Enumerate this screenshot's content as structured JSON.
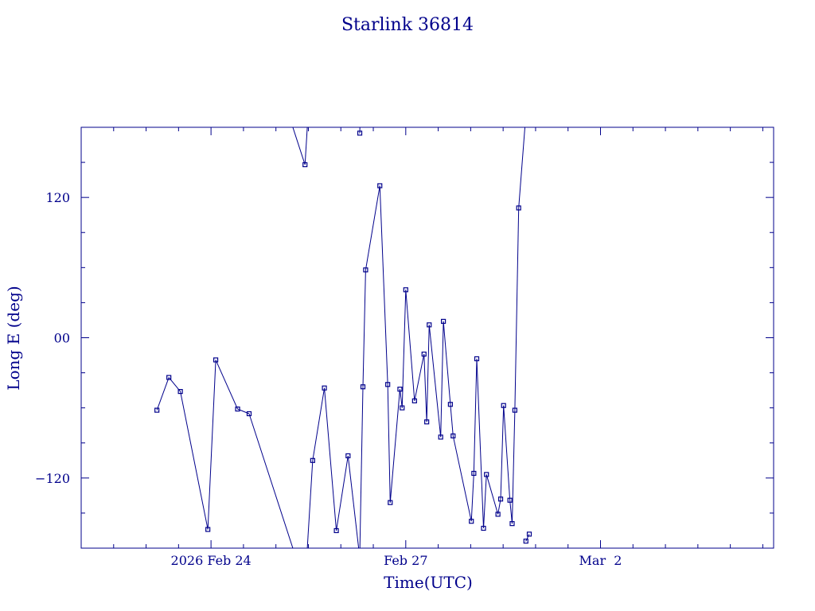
{
  "chart_data": {
    "type": "line",
    "title": "Starlink 36814",
    "xlabel": "Time(UTC)",
    "ylabel": "Long E (deg)",
    "x_unit": "days",
    "xlim": [
      "2026-02-22T00:00",
      "2026-03-04T16:00"
    ],
    "ylim": [
      -180,
      180
    ],
    "x_ticks": [
      {
        "label": "2026 Feb 24",
        "x": "2026-02-24T00:00"
      },
      {
        "label": "Feb 27",
        "x": "2026-02-27T00:00"
      },
      {
        "label": "Mar  2",
        "x": "2026-03-02T00:00"
      }
    ],
    "y_ticks": [
      {
        "label": "−120",
        "value": -120
      },
      {
        "label": "00",
        "value": 0
      },
      {
        "label": "120",
        "value": 120
      }
    ],
    "color": "#00008b",
    "wraps_at_longitude": 180,
    "series": [
      {
        "points": [
          {
            "x": "2026-02-23T04:00",
            "y": -62
          },
          {
            "x": "2026-02-23T08:25",
            "y": -34
          },
          {
            "x": "2026-02-23T12:40",
            "y": -46
          },
          {
            "x": "2026-02-23T22:50",
            "y": -164
          },
          {
            "x": "2026-02-24T01:45",
            "y": -19
          },
          {
            "x": "2026-02-24T09:50",
            "y": -61
          },
          {
            "x": "2026-02-24T14:05",
            "y": -65
          },
          {
            "x": "2026-02-25T10:45",
            "y": 148
          },
          {
            "x": "2026-02-25T13:35",
            "y": -105
          },
          {
            "x": "2026-02-25T17:55",
            "y": -43
          },
          {
            "x": "2026-02-25T22:20",
            "y": -165
          },
          {
            "x": "2026-02-26T02:40",
            "y": -101
          },
          {
            "x": "2026-02-26T06:50",
            "y": -185
          },
          {
            "x": "2026-02-26T07:00",
            "y": 175
          },
          {
            "x": "2026-02-26T08:10",
            "y": -42
          },
          {
            "x": "2026-02-26T09:10",
            "y": 58
          },
          {
            "x": "2026-02-26T14:25",
            "y": 130
          },
          {
            "x": "2026-02-26T17:20",
            "y": -40
          },
          {
            "x": "2026-02-26T18:15",
            "y": -141
          },
          {
            "x": "2026-02-26T21:50",
            "y": -44
          },
          {
            "x": "2026-02-26T22:40",
            "y": -60
          },
          {
            "x": "2026-02-27T00:00",
            "y": 41
          },
          {
            "x": "2026-02-27T03:15",
            "y": -54
          },
          {
            "x": "2026-02-27T06:45",
            "y": -14
          },
          {
            "x": "2026-02-27T07:45",
            "y": -72
          },
          {
            "x": "2026-02-27T08:40",
            "y": 11
          },
          {
            "x": "2026-02-27T12:55",
            "y": -85
          },
          {
            "x": "2026-02-27T13:55",
            "y": 14
          },
          {
            "x": "2026-02-27T16:30",
            "y": -57
          },
          {
            "x": "2026-02-27T17:30",
            "y": -84
          },
          {
            "x": "2026-02-28T00:15",
            "y": -157
          },
          {
            "x": "2026-02-28T01:10",
            "y": -116
          },
          {
            "x": "2026-02-28T02:15",
            "y": -18
          },
          {
            "x": "2026-02-28T04:45",
            "y": -163
          },
          {
            "x": "2026-02-28T05:50",
            "y": -117
          },
          {
            "x": "2026-02-28T10:05",
            "y": -151
          },
          {
            "x": "2026-02-28T11:05",
            "y": -138
          },
          {
            "x": "2026-02-28T12:10",
            "y": -58
          },
          {
            "x": "2026-02-28T14:30",
            "y": -139
          },
          {
            "x": "2026-02-28T15:20",
            "y": -159
          },
          {
            "x": "2026-02-28T16:20",
            "y": -62
          },
          {
            "x": "2026-02-28T17:45",
            "y": 111
          },
          {
            "x": "2026-02-28T20:15",
            "y": 186
          },
          {
            "x": "2026-02-28T20:25",
            "y": -174
          },
          {
            "x": "2026-02-28T21:40",
            "y": -168
          }
        ]
      }
    ]
  }
}
